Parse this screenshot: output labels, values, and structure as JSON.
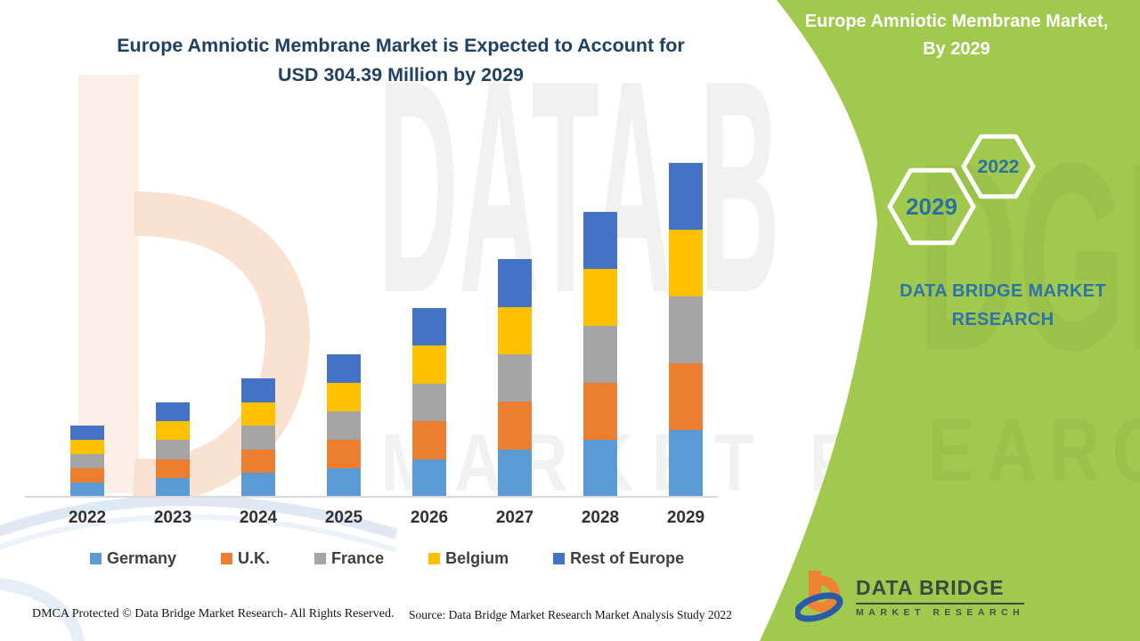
{
  "title": {
    "line1": "Europe Amniotic Membrane Market is Expected to Account for",
    "line2": "USD 304.39 Million by 2029"
  },
  "watermarks": {
    "big_text": "DATA B",
    "market_text": "MARKET RE",
    "panel_big_text": "DGE",
    "panel_small_text": "EARCH"
  },
  "chart_data": {
    "type": "bar",
    "stacked": true,
    "title": "Europe Amniotic Membrane Market is Expected to Account for USD 304.39 Million by 2029",
    "unit": "USD Million",
    "xlabel": "",
    "ylabel": "",
    "y_axis_visible": false,
    "gridlines": false,
    "legend_position": "bottom",
    "categories": [
      "2022",
      "2023",
      "2024",
      "2025",
      "2026",
      "2027",
      "2028",
      "2029"
    ],
    "series": [
      {
        "name": "Germany",
        "color": "#5B9BD5",
        "values": [
          13.0,
          17.2,
          21.6,
          26.0,
          34.5,
          43.3,
          51.9,
          60.88
        ]
      },
      {
        "name": "U.K.",
        "color": "#ED7D31",
        "values": [
          13.0,
          17.2,
          21.6,
          26.0,
          34.5,
          43.3,
          51.9,
          60.88
        ]
      },
      {
        "name": "France",
        "color": "#A5A5A5",
        "values": [
          13.0,
          17.2,
          21.6,
          26.0,
          34.5,
          43.3,
          51.9,
          60.88
        ]
      },
      {
        "name": "Belgium",
        "color": "#FFC000",
        "values": [
          13.0,
          17.2,
          21.6,
          26.0,
          34.5,
          43.3,
          51.9,
          60.88
        ]
      },
      {
        "name": "Rest of Europe",
        "color": "#4472C4",
        "values": [
          13.0,
          17.2,
          21.6,
          26.0,
          34.5,
          43.3,
          51.9,
          60.88
        ]
      }
    ],
    "totals_usd_million": [
      65.0,
      86.1,
      107.9,
      130.1,
      172.6,
      216.7,
      259.5,
      304.39
    ],
    "ylim": [
      0,
      310
    ]
  },
  "panel": {
    "title_line1": "Europe Amniotic Membrane Market,",
    "title_line2": "By 2029",
    "hexagon_large": "2029",
    "hexagon_small": "2022",
    "brand_line1": "DATA BRIDGE MARKET",
    "brand_line2": "RESEARCH"
  },
  "logo": {
    "name_top": "DATA BRIDGE",
    "name_bottom": "MARKET RESEARCH"
  },
  "footer": {
    "dmca": "DMCA Protected © Data Bridge Market Research- All Rights Reserved.",
    "source": "Source: Data Bridge Market Research Market Analysis Study 2022"
  },
  "colors": {
    "panel_green": "#a1c94e",
    "title_blue": "#1e4163",
    "brand_blue": "#2e74a8",
    "hexagon_text_blue": "#2d719f",
    "axis_line": "#d9d9d9"
  }
}
